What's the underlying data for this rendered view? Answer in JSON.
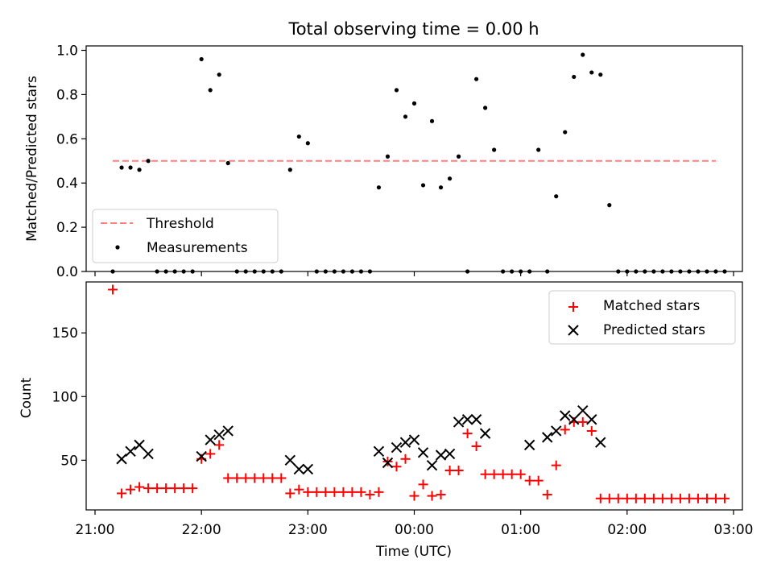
{
  "chart_data": [
    {
      "type": "scatter",
      "title": "Total observing time = 0.00 h",
      "ylabel": "Matched/Predicted stars",
      "xlabel": "",
      "ylim": [
        0,
        1.02
      ],
      "yticks": [
        "0.0",
        "0.2",
        "0.4",
        "0.6",
        "0.8",
        "1.0"
      ],
      "yticks_values": [
        0,
        0.2,
        0.4,
        0.6,
        0.8,
        1.0
      ],
      "legend": {
        "placement": "lower-left",
        "entries": [
          "Threshold",
          "Measurements"
        ]
      },
      "threshold": {
        "name": "Threshold",
        "value": 0.5,
        "x_start": "21:10",
        "x_end": "02:50",
        "color": "#ff7f7f"
      },
      "measurements": {
        "name": "Measurements",
        "color": "#000000",
        "x": [
          "21:10",
          "21:15",
          "21:20",
          "21:25",
          "21:30",
          "21:35",
          "21:40",
          "21:45",
          "21:50",
          "21:55",
          "22:00",
          "22:05",
          "22:10",
          "22:15",
          "22:20",
          "22:25",
          "22:30",
          "22:35",
          "22:40",
          "22:45",
          "22:50",
          "22:55",
          "23:00",
          "23:05",
          "23:10",
          "23:15",
          "23:20",
          "23:25",
          "23:30",
          "23:35",
          "23:40",
          "23:45",
          "23:50",
          "23:55",
          "00:00",
          "00:05",
          "00:10",
          "00:15",
          "00:20",
          "00:25",
          "00:30",
          "00:35",
          "00:40",
          "00:45",
          "00:50",
          "00:55",
          "01:00",
          "01:05",
          "01:10",
          "01:15",
          "01:20",
          "01:25",
          "01:30",
          "01:35",
          "01:40",
          "01:45",
          "01:50",
          "01:55",
          "02:00",
          "02:05",
          "02:10",
          "02:15",
          "02:20",
          "02:25",
          "02:30",
          "02:35",
          "02:40",
          "02:45",
          "02:50",
          "02:55"
        ],
        "y": [
          0.0,
          0.47,
          0.47,
          0.46,
          0.5,
          0.0,
          0.0,
          0.0,
          0.0,
          0.0,
          0.96,
          0.82,
          0.89,
          0.49,
          0.0,
          0.0,
          0.0,
          0.0,
          0.0,
          0.0,
          0.46,
          0.61,
          0.58,
          0.0,
          0.0,
          0.0,
          0.0,
          0.0,
          0.0,
          0.0,
          0.38,
          0.52,
          0.82,
          0.7,
          0.76,
          0.39,
          0.68,
          0.38,
          0.42,
          0.52,
          0.0,
          0.87,
          0.74,
          0.55,
          0.0,
          0.0,
          0.0,
          0.0,
          0.55,
          0.0,
          0.34,
          0.63,
          0.88,
          0.98,
          0.9,
          0.89,
          0.3,
          0.0,
          0.0,
          0.0,
          0.0,
          0.0,
          0.0,
          0.0,
          0.0,
          0.0,
          0.0,
          0.0,
          0.0,
          0.0
        ]
      }
    },
    {
      "type": "scatter",
      "title": "",
      "ylabel": "Count",
      "xlabel": "Time (UTC)",
      "ylim": [
        11,
        190
      ],
      "yticks": [
        "50",
        "100",
        "150"
      ],
      "yticks_values": [
        50,
        100,
        150
      ],
      "xlim": [
        "20:55",
        "03:05"
      ],
      "xticks": [
        "21:00",
        "22:00",
        "23:00",
        "00:00",
        "01:00",
        "02:00",
        "03:00"
      ],
      "legend": {
        "placement": "top-right",
        "entries": [
          "Matched stars",
          "Predicted stars"
        ]
      },
      "series": [
        {
          "name": "Matched stars",
          "marker": "+",
          "color": "#ff0000",
          "x": [
            "21:10",
            "21:15",
            "21:20",
            "21:25",
            "21:30",
            "21:35",
            "21:40",
            "21:45",
            "21:50",
            "21:55",
            "22:00",
            "22:05",
            "22:10",
            "22:15",
            "22:20",
            "22:25",
            "22:30",
            "22:35",
            "22:40",
            "22:45",
            "22:50",
            "22:55",
            "23:00",
            "23:05",
            "23:10",
            "23:15",
            "23:20",
            "23:25",
            "23:30",
            "23:35",
            "23:40",
            "23:45",
            "23:50",
            "23:55",
            "00:00",
            "00:05",
            "00:10",
            "00:15",
            "00:20",
            "00:25",
            "00:30",
            "00:35",
            "00:40",
            "00:45",
            "00:50",
            "00:55",
            "01:00",
            "01:05",
            "01:10",
            "01:15",
            "01:20",
            "01:25",
            "01:30",
            "01:35",
            "01:40",
            "01:45",
            "01:50",
            "01:55",
            "02:00",
            "02:05",
            "02:10",
            "02:15",
            "02:20",
            "02:25",
            "02:30",
            "02:35",
            "02:40",
            "02:45",
            "02:50",
            "02:55"
          ],
          "y": [
            184,
            24,
            27,
            29,
            28,
            28,
            28,
            28,
            28,
            28,
            51,
            55,
            62,
            36,
            36,
            36,
            36,
            36,
            36,
            36,
            24,
            27,
            25,
            25,
            25,
            25,
            25,
            25,
            25,
            23,
            25,
            49,
            45,
            51,
            22,
            31,
            22,
            23,
            42,
            42,
            71,
            61,
            39,
            39,
            39,
            39,
            39,
            34,
            34,
            23,
            46,
            74,
            80,
            80,
            73,
            20,
            20,
            20,
            20,
            20,
            20,
            20,
            20,
            20,
            20,
            20,
            20,
            20,
            20,
            20
          ]
        },
        {
          "name": "Predicted stars",
          "marker": "x",
          "color": "#000000",
          "x": [
            "21:15",
            "21:20",
            "21:25",
            "21:30",
            "22:00",
            "22:05",
            "22:10",
            "22:15",
            "22:50",
            "22:55",
            "23:00",
            "23:40",
            "23:45",
            "23:50",
            "23:55",
            "00:00",
            "00:05",
            "00:10",
            "00:15",
            "00:20",
            "00:25",
            "00:30",
            "00:35",
            "00:40",
            "01:05",
            "01:15",
            "01:20",
            "01:25",
            "01:30",
            "01:35",
            "01:40",
            "01:45"
          ],
          "y": [
            51,
            57,
            62,
            55,
            53,
            66,
            70,
            73,
            50,
            43,
            43,
            57,
            48,
            60,
            64,
            66,
            56,
            46,
            54,
            55,
            80,
            82,
            82,
            71,
            62,
            68,
            73,
            85,
            82,
            89,
            82,
            64
          ]
        }
      ]
    }
  ]
}
